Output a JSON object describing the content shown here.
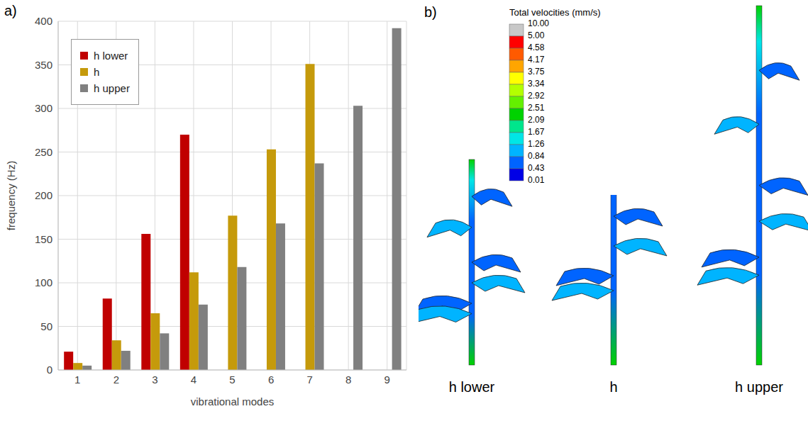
{
  "chart_data": {
    "type": "bar",
    "annotations": [
      "a)"
    ],
    "x_label": "vibrational modes",
    "y_label": "frequency (Hz)",
    "categories": [
      "1",
      "2",
      "3",
      "4",
      "5",
      "6",
      "7",
      "8",
      "9"
    ],
    "series": [
      {
        "name": "h lower",
        "color": "#c00000",
        "values": [
          21,
          82,
          156,
          270,
          null,
          null,
          null,
          null,
          null
        ]
      },
      {
        "name": "h",
        "color": "#c59a0b",
        "values": [
          8,
          34,
          65,
          112,
          177,
          253,
          351,
          null,
          null
        ]
      },
      {
        "name": "h upper",
        "color": "#808080",
        "values": [
          5,
          22,
          42,
          75,
          118,
          168,
          237,
          303,
          392
        ]
      }
    ],
    "ylim": [
      0,
      400
    ],
    "yticks": [
      0,
      50,
      100,
      150,
      200,
      250,
      300,
      350,
      400
    ],
    "grid": true,
    "legend": "upper left"
  },
  "panel_b": {
    "label": "b)",
    "colorbar": {
      "title": "Total velocities (mm/s)",
      "ticks": [
        {
          "value": 10,
          "label": "10.00"
        },
        {
          "value": 5,
          "label": "5.00"
        },
        {
          "value": 4.58,
          "label": "4.58"
        },
        {
          "value": 4.17,
          "label": "4.17"
        },
        {
          "value": 3.75,
          "label": "3.75"
        },
        {
          "value": 3.34,
          "label": "3.34"
        },
        {
          "value": 2.92,
          "label": "2.92"
        },
        {
          "value": 2.51,
          "label": "2.51"
        },
        {
          "value": 2.09,
          "label": "2.09"
        },
        {
          "value": 1.67,
          "label": "1.67"
        },
        {
          "value": 1.26,
          "label": "1.26"
        },
        {
          "value": 0.84,
          "label": "0.84"
        },
        {
          "value": 0.43,
          "label": "0.43"
        },
        {
          "value": 0.01,
          "label": "0.01"
        }
      ],
      "colors": [
        "#c8c8c8",
        "#ff0000",
        "#ff5a00",
        "#ffa500",
        "#ffff00",
        "#b4ff00",
        "#64f000",
        "#00d200",
        "#00e68c",
        "#00e6e6",
        "#00b4ff",
        "#0064ff",
        "#0000e6"
      ]
    },
    "plants": [
      "h lower",
      "h",
      "h upper"
    ]
  }
}
